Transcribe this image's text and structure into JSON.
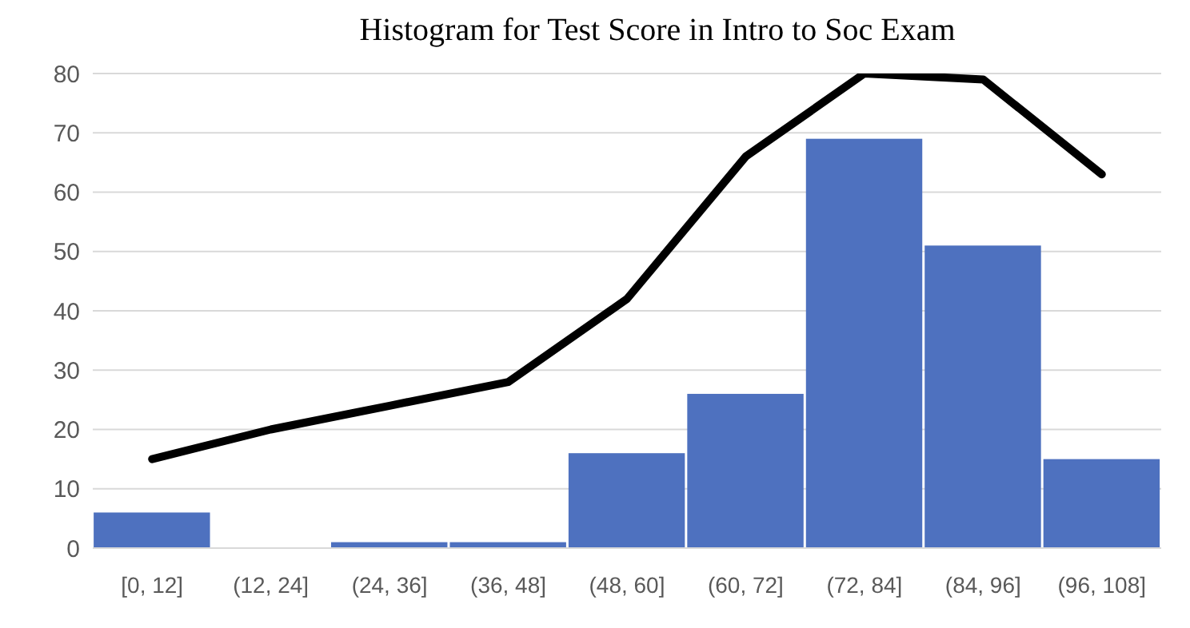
{
  "chart_data": {
    "type": "histogram",
    "title": "Histogram for Test Score in Intro to Soc Exam",
    "categories": [
      "[0, 12]",
      "(12, 24]",
      "(24, 36]",
      "(36, 48]",
      "(48, 60]",
      "(60, 72]",
      "(72, 84]",
      "(84, 96]",
      "(96, 108]"
    ],
    "values": [
      6,
      0,
      1,
      1,
      16,
      26,
      69,
      51,
      15
    ],
    "color": "#4e71bf",
    "series": [
      {
        "type": "line",
        "color": "#000000",
        "values": [
          15,
          20,
          24,
          28,
          42,
          66,
          80,
          79,
          63
        ]
      }
    ],
    "ylim": [
      0,
      80
    ],
    "yticks": [
      0,
      10,
      20,
      30,
      40,
      50,
      60,
      70,
      80
    ],
    "grid": "y",
    "legend": false,
    "marker": "none",
    "line_style": "solid"
  }
}
